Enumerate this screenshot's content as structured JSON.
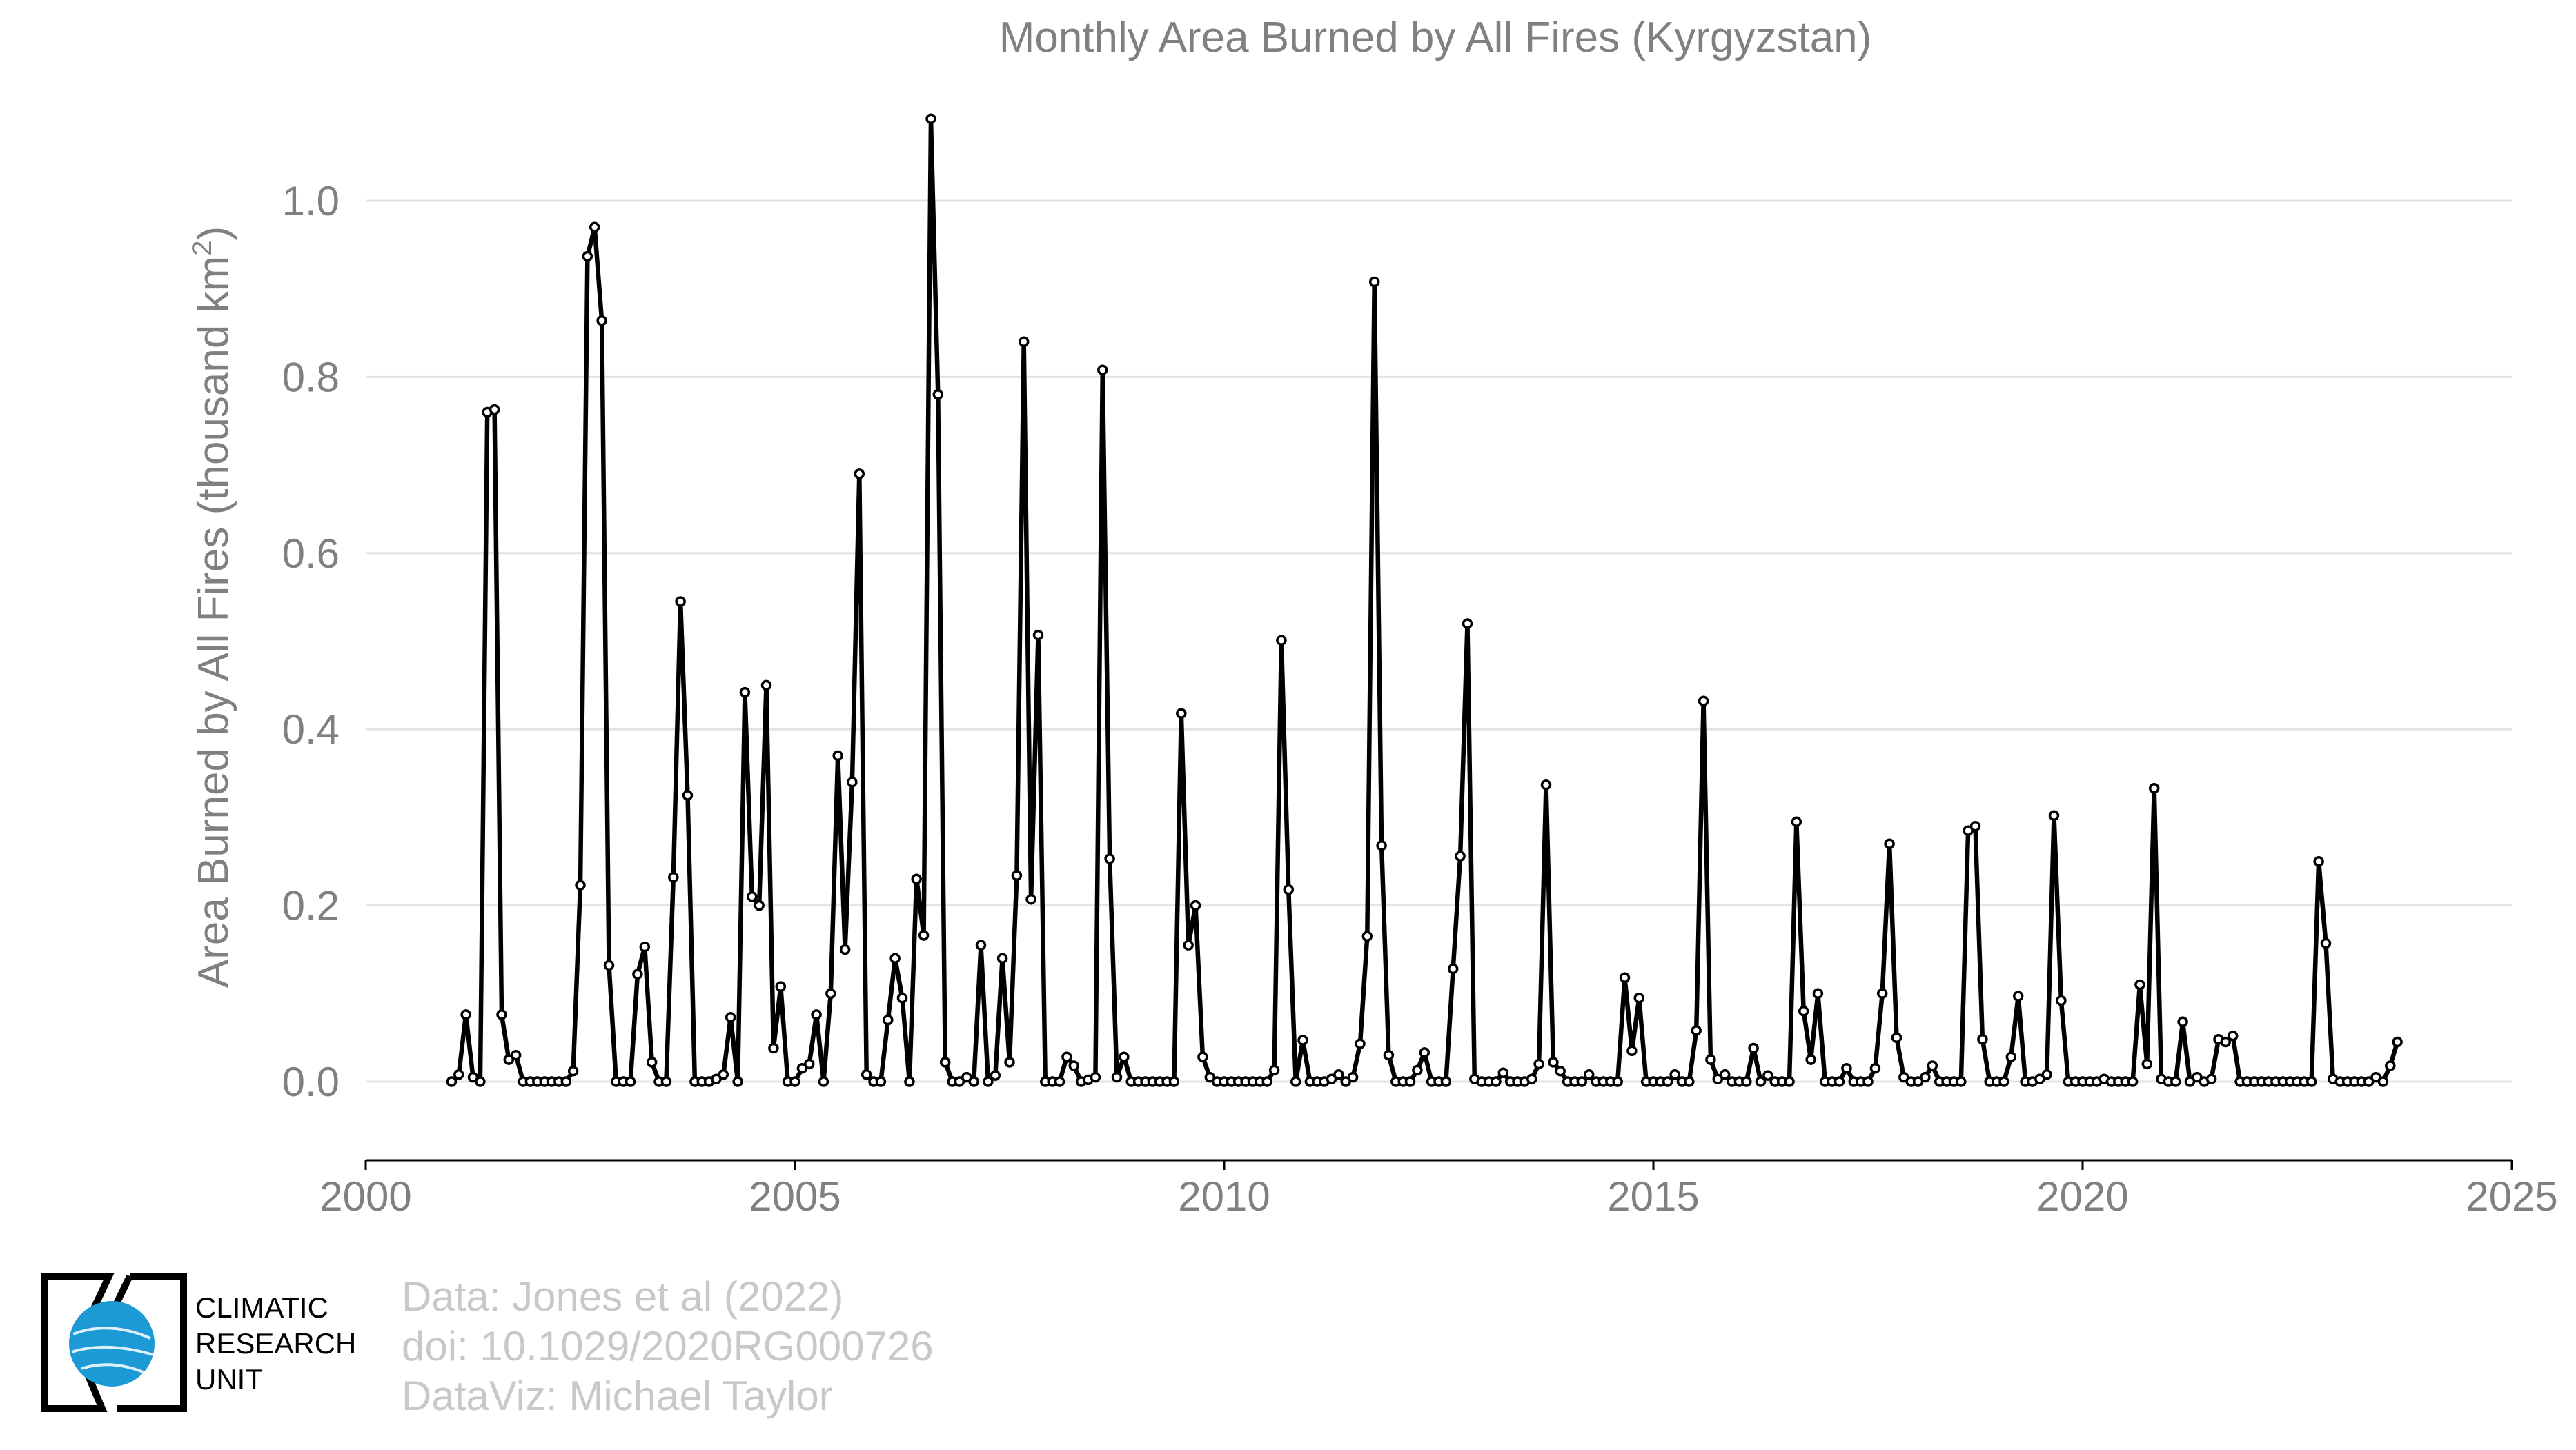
{
  "chart_data": {
    "type": "line",
    "title": "Monthly Area Burned by All Fires (Kyrgyzstan)",
    "ylabel_main": "Area Burned by All Fires (thousand km",
    "ylabel_sup": "2",
    "ylabel_close": ")",
    "xlabel": "",
    "xlim": [
      2000,
      2025
    ],
    "ylim": [
      -0.085,
      1.1
    ],
    "x_ticks": [
      "2000",
      "2005",
      "2010",
      "2015",
      "2020",
      "2025"
    ],
    "y_ticks": [
      "0.0",
      "0.2",
      "0.4",
      "0.6",
      "0.8",
      "1.0"
    ],
    "grid": "horizontal",
    "legend": "none",
    "x_start": "2001-01",
    "x_step": "monthly",
    "series": [
      {
        "values": [
          0.0,
          0.008,
          0.076,
          0.005,
          0.0,
          0.76,
          0.763,
          0.076,
          0.025,
          0.03,
          0.0,
          0.0,
          0.0,
          0.0,
          0.0,
          0.0,
          0.0,
          0.012,
          0.223,
          0.937,
          0.97,
          0.864,
          0.132,
          0.0,
          0.0,
          0.0,
          0.122,
          0.153,
          0.022,
          0.0,
          0.0,
          0.232,
          0.545,
          0.325,
          0.0,
          0.0,
          0.0,
          0.003,
          0.008,
          0.073,
          0.0,
          0.442,
          0.21,
          0.2,
          0.45,
          0.038,
          0.108,
          0.0,
          0.0,
          0.015,
          0.02,
          0.076,
          0.0,
          0.1,
          0.37,
          0.15,
          0.34,
          0.69,
          0.008,
          0.0,
          0.0,
          0.07,
          0.14,
          0.095,
          0.0,
          0.23,
          0.166,
          1.093,
          0.78,
          0.022,
          0.0,
          0.0,
          0.005,
          0.0,
          0.155,
          0.0,
          0.007,
          0.14,
          0.022,
          0.234,
          0.84,
          0.207,
          0.507,
          0.0,
          0.0,
          0.0,
          0.028,
          0.018,
          0.0,
          0.002,
          0.005,
          0.808,
          0.253,
          0.005,
          0.028,
          0.0,
          0.0,
          0.0,
          0.0,
          0.0,
          0.0,
          0.0,
          0.418,
          0.155,
          0.2,
          0.028,
          0.005,
          0.0,
          0.0,
          0.0,
          0.0,
          0.0,
          0.0,
          0.0,
          0.0,
          0.013,
          0.501,
          0.218,
          0.0,
          0.047,
          0.0,
          0.0,
          0.0,
          0.003,
          0.008,
          0.0,
          0.005,
          0.043,
          0.165,
          0.908,
          0.268,
          0.03,
          0.0,
          0.0,
          0.0,
          0.013,
          0.033,
          0.0,
          0.0,
          0.0,
          0.128,
          0.256,
          0.52,
          0.003,
          0.0,
          0.0,
          0.0,
          0.01,
          0.0,
          0.0,
          0.0,
          0.003,
          0.02,
          0.337,
          0.022,
          0.012,
          0.0,
          0.0,
          0.0,
          0.008,
          0.0,
          0.0,
          0.0,
          0.0,
          0.118,
          0.035,
          0.095,
          0.0,
          0.0,
          0.0,
          0.0,
          0.008,
          0.0,
          0.0,
          0.058,
          0.432,
          0.025,
          0.003,
          0.008,
          0.0,
          0.0,
          0.0,
          0.038,
          0.0,
          0.007,
          0.0,
          0.0,
          0.0,
          0.295,
          0.08,
          0.025,
          0.1,
          0.0,
          0.0,
          0.0,
          0.015,
          0.0,
          0.0,
          0.0,
          0.015,
          0.1,
          0.27,
          0.05,
          0.005,
          0.0,
          0.0,
          0.005,
          0.018,
          0.0,
          0.0,
          0.0,
          0.0,
          0.285,
          0.29,
          0.048,
          0.0,
          0.0,
          0.0,
          0.028,
          0.097,
          0.0,
          0.0,
          0.003,
          0.008,
          0.302,
          0.092,
          0.0,
          0.0,
          0.0,
          0.0,
          0.0,
          0.003,
          0.0,
          0.0,
          0.0,
          0.0,
          0.11,
          0.02,
          0.333,
          0.003,
          0.0,
          0.0,
          0.068,
          0.0,
          0.005,
          0.0,
          0.003,
          0.048,
          0.045,
          0.052,
          0.0,
          0.0,
          0.0,
          0.0,
          0.0,
          0.0,
          0.0,
          0.0,
          0.0,
          0.0,
          0.0,
          0.25,
          0.157,
          0.003,
          0.0,
          0.0,
          0.0,
          0.0,
          0.0,
          0.005,
          0.0,
          0.018,
          0.045
        ]
      }
    ]
  },
  "credits": {
    "line1": "Data: Jones et al (2022)",
    "line2": "doi: 10.1029/2020RG000726",
    "line3": "DataViz: Michael Taylor"
  },
  "logo": {
    "line1": "CLIMATIC",
    "line2": "RESEARCH",
    "line3": "UNIT",
    "globe_color": "#1b9ad6"
  }
}
